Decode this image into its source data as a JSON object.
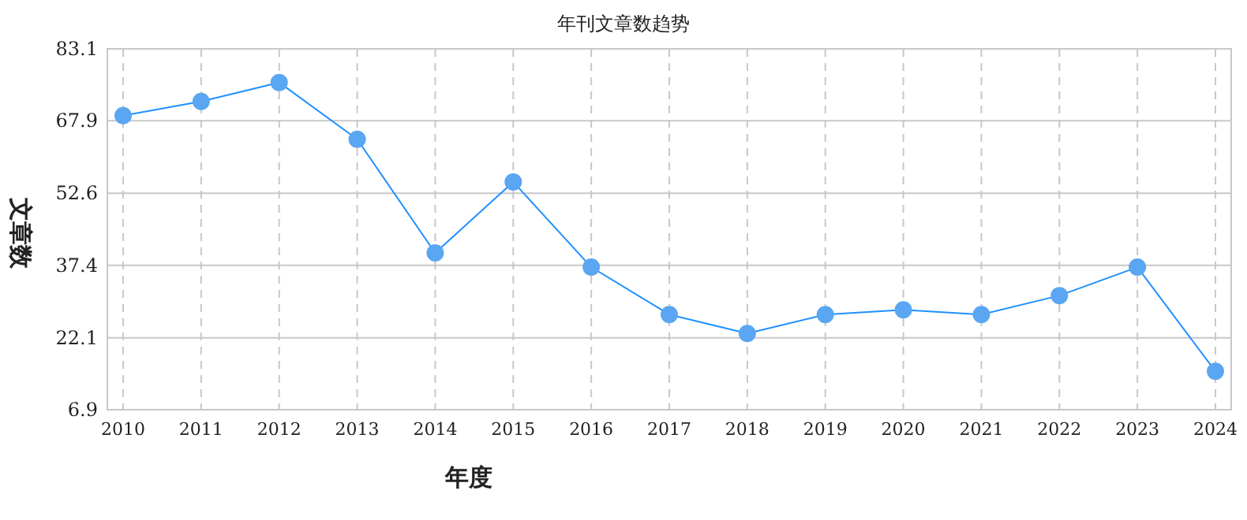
{
  "chart_data": {
    "type": "line",
    "title": "年刊文章数趋势",
    "xlabel": "年度",
    "ylabel": "文章数",
    "categories": [
      "2010",
      "2011",
      "2012",
      "2013",
      "2014",
      "2015",
      "2016",
      "2017",
      "2018",
      "2019",
      "2020",
      "2021",
      "2022",
      "2023",
      "2024"
    ],
    "series": [
      {
        "color": "#1e90ff",
        "values": [
          69,
          72,
          76,
          64,
          40,
          55,
          37,
          27,
          23,
          27,
          28,
          27,
          31,
          37,
          15
        ]
      }
    ],
    "ylim": [
      6.9,
      83.1
    ],
    "yticks": [
      6.9,
      22.1,
      37.4,
      52.6,
      67.9,
      83.1
    ],
    "grid": true,
    "marker": "circle",
    "line_style": "solid"
  }
}
